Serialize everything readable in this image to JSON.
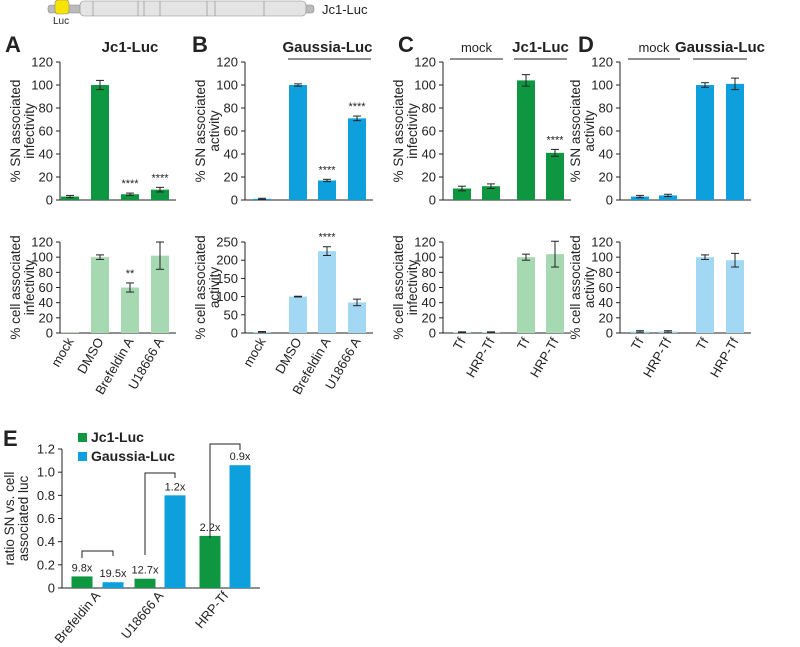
{
  "construct": {
    "label": "Jc1-Luc",
    "luc_label": "Luc"
  },
  "colors": {
    "green": "#0e9640",
    "blue": "#0ea0dc",
    "light_green": "#a6d9b1",
    "light_blue": "#a3d8f4"
  },
  "chart_data": [
    {
      "panel": "A",
      "type": "bar",
      "header": "Jc1-Luc",
      "header_color": "green",
      "categories": [
        "mock",
        "DMSO",
        "Brefeldin A",
        "U18666 A"
      ],
      "top": {
        "ylabel": [
          "% SN associated",
          "infectivity"
        ],
        "ylim": [
          0,
          120
        ],
        "ticks": [
          0,
          20,
          40,
          60,
          80,
          100,
          120
        ],
        "values": [
          3,
          100,
          5,
          9
        ],
        "errors": [
          1,
          4,
          1,
          2
        ],
        "stars": [
          "",
          "",
          "****",
          "****"
        ]
      },
      "bottom": {
        "ylabel": [
          "% cell associated",
          "infectivity"
        ],
        "ylim": [
          0,
          120
        ],
        "ticks": [
          0,
          20,
          40,
          60,
          80,
          100,
          120
        ],
        "values": [
          0.5,
          100,
          60,
          102
        ],
        "errors": [
          0,
          3,
          6,
          18
        ],
        "stars": [
          "",
          "",
          "**",
          ""
        ]
      }
    },
    {
      "panel": "B",
      "type": "bar",
      "header": "Gaussia-Luc",
      "header_color": "blue",
      "categories": [
        "mock",
        "DMSO",
        "Brefeldin A",
        "U18666 A"
      ],
      "top": {
        "ylabel": [
          "% SN associated",
          "activity"
        ],
        "ylim": [
          0,
          120
        ],
        "ticks": [
          0,
          20,
          40,
          60,
          80,
          100,
          120
        ],
        "values": [
          1,
          100,
          17,
          71
        ],
        "errors": [
          0.5,
          1,
          1,
          2
        ],
        "stars": [
          "",
          "",
          "****",
          "****"
        ]
      },
      "bottom": {
        "ylabel": [
          "% cell associated",
          "activity"
        ],
        "ylim": [
          0,
          250
        ],
        "ticks": [
          0,
          50,
          100,
          150,
          200,
          250
        ],
        "values": [
          3,
          100,
          225,
          84
        ],
        "errors": [
          1,
          1,
          12,
          9
        ],
        "stars": [
          "",
          "",
          "****",
          ""
        ]
      }
    },
    {
      "panel": "C",
      "type": "bar",
      "groups": [
        "mock",
        "Jc1-Luc"
      ],
      "categories": [
        "Tf",
        "HRP-Tf",
        "Tf",
        "HRP-Tf"
      ],
      "top": {
        "ylabel": [
          "% SN associated",
          "infectivity"
        ],
        "ylim": [
          0,
          120
        ],
        "ticks": [
          0,
          20,
          40,
          60,
          80,
          100,
          120
        ],
        "values": [
          10,
          12,
          104,
          41
        ],
        "errors": [
          2,
          2,
          5,
          3
        ],
        "stars": [
          "",
          "",
          "",
          "****"
        ]
      },
      "bottom": {
        "ylabel": [
          "% cell associated",
          "infectivity"
        ],
        "ylim": [
          0,
          120
        ],
        "ticks": [
          0,
          20,
          40,
          60,
          80,
          100,
          120
        ],
        "values": [
          1,
          1,
          100,
          104
        ],
        "errors": [
          0.5,
          0.5,
          4,
          17
        ],
        "stars": [
          "",
          "",
          "",
          ""
        ]
      }
    },
    {
      "panel": "D",
      "type": "bar",
      "groups": [
        "mock",
        "Gaussia-Luc"
      ],
      "categories": [
        "Tf",
        "HRP-Tf",
        "Tf",
        "HRP-Tf"
      ],
      "top": {
        "ylabel": [
          "% SN associated",
          "activity"
        ],
        "ylim": [
          0,
          120
        ],
        "ticks": [
          0,
          20,
          40,
          60,
          80,
          100,
          120
        ],
        "values": [
          3,
          4,
          100,
          101
        ],
        "errors": [
          1,
          1,
          2,
          5
        ],
        "stars": [
          "",
          "",
          "",
          ""
        ]
      },
      "bottom": {
        "ylabel": [
          "% cell associated",
          "activity"
        ],
        "ylim": [
          0,
          120
        ],
        "ticks": [
          0,
          20,
          40,
          60,
          80,
          100,
          120
        ],
        "values": [
          2,
          2,
          100,
          96
        ],
        "errors": [
          1,
          1,
          3,
          9
        ],
        "stars": [
          "",
          "",
          "",
          ""
        ]
      }
    },
    {
      "panel": "E",
      "type": "bar",
      "ylabel": [
        "ratio SN vs. cell",
        "associated luc"
      ],
      "ylim": [
        0,
        1.2
      ],
      "ticks": [
        "0",
        "0.2",
        "0.4",
        "0.6",
        "0.8",
        "1.0",
        "1.2"
      ],
      "categories": [
        "Brefeldin A",
        "U18666 A",
        "HRP-Tf"
      ],
      "series": [
        {
          "name": "Jc1-Luc",
          "color": "green",
          "values": [
            0.1,
            0.08,
            0.45
          ],
          "labels": [
            "9.8x",
            "12.7x",
            "2.2x"
          ]
        },
        {
          "name": "Gaussia-Luc",
          "color": "blue",
          "values": [
            0.05,
            0.8,
            1.06
          ],
          "labels": [
            "19.5x",
            "1.2x",
            "0.9x"
          ]
        }
      ]
    }
  ]
}
